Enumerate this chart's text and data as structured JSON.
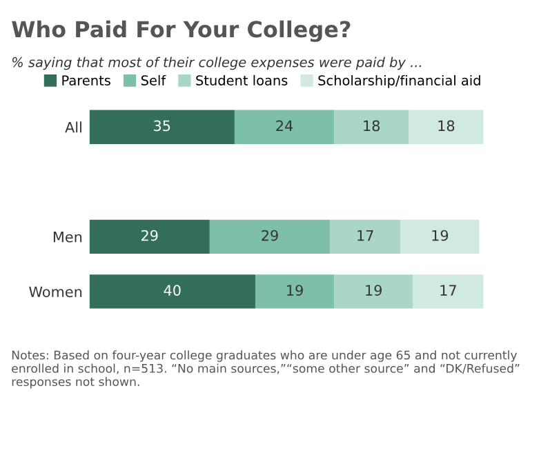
{
  "chart_data": {
    "type": "bar",
    "orientation": "horizontal",
    "stacked": true,
    "title": "Who Paid For Your College?",
    "subtitle": "% saying that most of their college expenses were paid by ...",
    "categories": [
      "All",
      null,
      "Men",
      "Women"
    ],
    "series": [
      {
        "name": "Parents",
        "color": "#336e5b",
        "values": [
          35,
          null,
          29,
          40
        ]
      },
      {
        "name": "Self",
        "color": "#7dbfa9",
        "values": [
          24,
          null,
          29,
          19
        ]
      },
      {
        "name": "Student loans",
        "color": "#a9d6c7",
        "values": [
          18,
          null,
          17,
          19
        ]
      },
      {
        "name": "Scholarship/financial aid",
        "color": "#d0e9e2",
        "values": [
          18,
          null,
          19,
          17
        ]
      }
    ],
    "data_labels": true,
    "legend": "top",
    "grid": false,
    "annotations": [
      "Notes: Based on four-year college graduates who are under age 65 and not currently enrolled in school, n=513. “No main sources,”“some other source” and “DK/Refused” responses not shown."
    ]
  }
}
